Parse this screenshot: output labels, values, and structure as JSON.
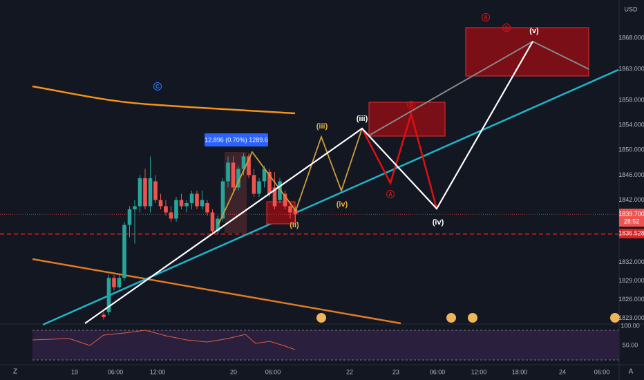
{
  "currency": "USD",
  "price_axis": {
    "ylim": [
      1822.2,
      1874.1
    ],
    "ticks": [
      {
        "value": 1823,
        "label": "1823.000"
      },
      {
        "value": 1826,
        "label": "1826.000"
      },
      {
        "value": 1829,
        "label": "1829.000"
      },
      {
        "value": 1832,
        "label": "1832.000"
      },
      {
        "value": 1842,
        "label": "1842.000"
      },
      {
        "value": 1846,
        "label": "1846.000"
      },
      {
        "value": 1850,
        "label": "1850.000"
      },
      {
        "value": 1854,
        "label": "1854.000"
      },
      {
        "value": 1858,
        "label": "1858.000"
      },
      {
        "value": 1863,
        "label": "1863.000"
      },
      {
        "value": 1868,
        "label": "1868.000"
      }
    ]
  },
  "time_axis": {
    "labels": [
      "19",
      "06:00",
      "12:00",
      "20",
      "06:00",
      "22",
      "23",
      "06:00",
      "12:00",
      "18:00",
      "24",
      "06:00"
    ]
  },
  "last_price": {
    "value": 1839.7,
    "label": "1839.700",
    "countdown": "28:52"
  },
  "level": {
    "value": 1836.528,
    "label": "1836.528"
  },
  "measure": "12.896 (0.70%) 1289.6",
  "candles": [
    [
      1823.6,
      1824,
      1822.8,
      1823.2
    ],
    [
      1824,
      1830,
      1823.5,
      1829.5
    ],
    [
      1829.5,
      1830,
      1827.5,
      1828
    ],
    [
      1828,
      1830,
      1827.8,
      1829.5
    ],
    [
      1829.5,
      1838.5,
      1829,
      1838
    ],
    [
      1838,
      1841,
      1836,
      1840.5
    ],
    [
      1840.5,
      1842,
      1835,
      1841
    ],
    [
      1841,
      1846,
      1840,
      1845.5
    ],
    [
      1845.5,
      1847,
      1840.5,
      1841
    ],
    [
      1841,
      1849,
      1840,
      1845.5
    ],
    [
      1845,
      1846,
      1841.5,
      1842
    ],
    [
      1842,
      1843,
      1840.5,
      1841
    ],
    [
      1841,
      1842,
      1839.5,
      1840
    ],
    [
      1840,
      1841,
      1838.5,
      1839
    ],
    [
      1839,
      1842.5,
      1838.5,
      1842
    ],
    [
      1842,
      1843,
      1840.5,
      1841
    ],
    [
      1841,
      1842,
      1840,
      1841.5
    ],
    [
      1841.5,
      1843.5,
      1840.5,
      1843
    ],
    [
      1843,
      1843.5,
      1840.5,
      1841
    ],
    [
      1841,
      1843.5,
      1840.5,
      1842
    ],
    [
      1841.5,
      1842,
      1839.5,
      1840
    ],
    [
      1840,
      1840.5,
      1836.5,
      1837
    ],
    [
      1837,
      1839.5,
      1836.5,
      1839
    ],
    [
      1839,
      1845.5,
      1838.5,
      1845
    ],
    [
      1845,
      1849,
      1844,
      1848
    ],
    [
      1848,
      1849,
      1843.5,
      1844
    ],
    [
      1844,
      1847.5,
      1843.5,
      1847
    ],
    [
      1847,
      1849.5,
      1846,
      1849
    ],
    [
      1849,
      1849.5,
      1845.5,
      1846
    ],
    [
      1846,
      1847,
      1842.5,
      1843
    ],
    [
      1843,
      1845.5,
      1842.5,
      1845
    ],
    [
      1845,
      1847.5,
      1844,
      1847
    ],
    [
      1846.5,
      1847,
      1842.5,
      1843
    ],
    [
      1844,
      1846.5,
      1840.5,
      1841
    ],
    [
      1842,
      1845.5,
      1841.5,
      1845
    ],
    [
      1843,
      1843.5,
      1840.5,
      1841
    ],
    [
      1841,
      1841.5,
      1839,
      1840
    ],
    [
      1840.5,
      1841,
      1838.5,
      1839.7
    ]
  ],
  "waves": [
    "(iii)",
    "(iv)",
    "(ii)",
    "(iii)",
    "(iv)",
    "(v)",
    "A",
    "B",
    "C",
    "A",
    "C"
  ],
  "rsi": {
    "ticks": [
      "100.00",
      "50.00"
    ]
  },
  "corner_labels": [
    "Z",
    "A"
  ]
}
